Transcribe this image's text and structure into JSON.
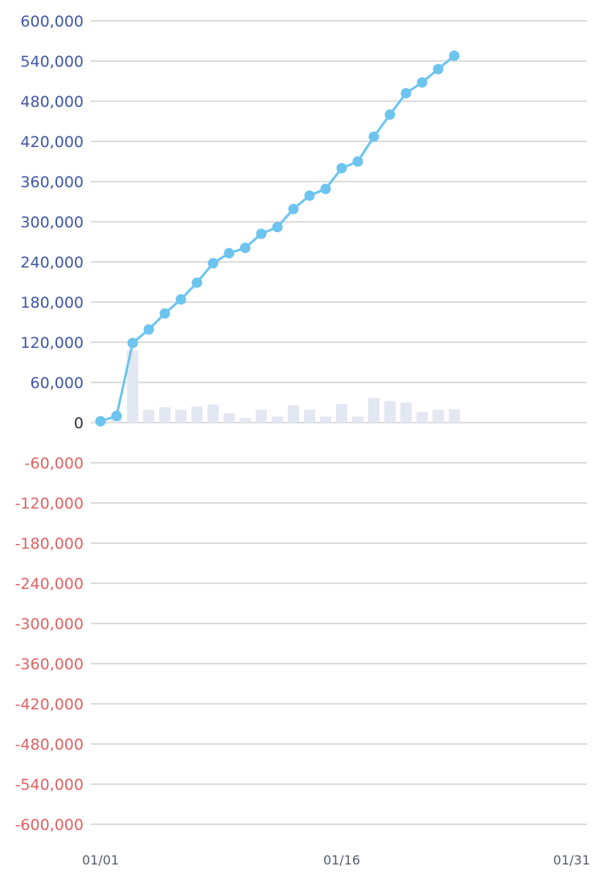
{
  "colors": {
    "line": "#6cc4ef",
    "bar": "#e3e7f2",
    "grid": "#dcdcdc",
    "positive_tick": "#3f57a6",
    "zero_tick": "#333333",
    "negative_tick": "#e06262",
    "x_tick": "#555e6e"
  },
  "chart_data": {
    "type": "line",
    "title": "",
    "xlabel": "",
    "ylabel": "",
    "ylim": [
      -600000,
      600000
    ],
    "xlim": [
      "01/01",
      "01/31"
    ],
    "grid": true,
    "y_ticks": [
      "600,000",
      "540,000",
      "480,000",
      "420,000",
      "360,000",
      "300,000",
      "240,000",
      "180,000",
      "120,000",
      "60,000",
      "0",
      "-60,000",
      "-120,000",
      "-180,000",
      "-240,000",
      "-300,000",
      "-360,000",
      "-420,000",
      "-480,000",
      "-540,000",
      "-600,000"
    ],
    "x_ticks": [
      "01/01",
      "01/16",
      "01/31"
    ],
    "x": [
      "01/01",
      "01/02",
      "01/03",
      "01/04",
      "01/05",
      "01/06",
      "01/07",
      "01/08",
      "01/09",
      "01/10",
      "01/11",
      "01/12",
      "01/13",
      "01/14",
      "01/15",
      "01/16",
      "01/17",
      "01/18",
      "01/19",
      "01/20",
      "01/21",
      "01/22",
      "01/23"
    ],
    "series": [
      {
        "type": "bar",
        "values": [
          2000,
          8000,
          108000,
          19000,
          23000,
          19000,
          24000,
          27000,
          14000,
          7000,
          19000,
          9000,
          26000,
          19000,
          9000,
          28000,
          9000,
          37000,
          32000,
          30000,
          16000,
          19000,
          20000
        ]
      },
      {
        "type": "line",
        "values": [
          2000,
          10000,
          119000,
          139000,
          163000,
          184000,
          209000,
          238000,
          253000,
          261000,
          282000,
          292000,
          319000,
          339000,
          349000,
          380000,
          390000,
          427000,
          460000,
          492000,
          508000,
          528000,
          548000
        ]
      }
    ]
  }
}
